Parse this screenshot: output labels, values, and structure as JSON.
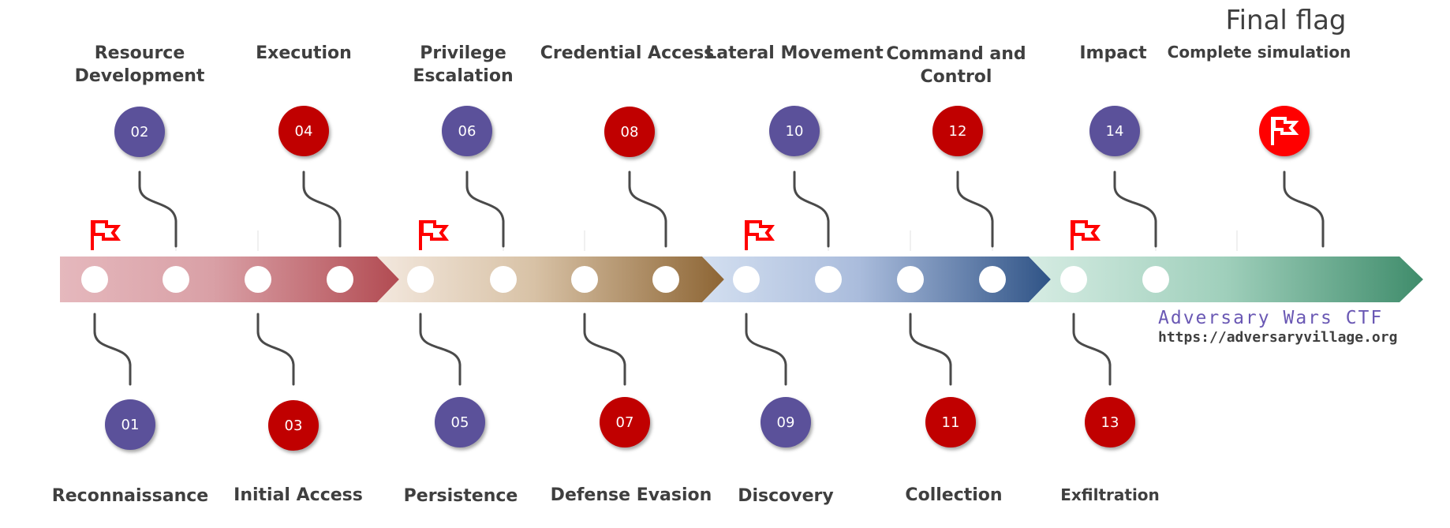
{
  "colors": {
    "purple": "#5b519a",
    "red": "#c00000",
    "flag_red": "#ff0000",
    "label": "#3f3f3f",
    "brand": "#6a58b4"
  },
  "stages": [
    {
      "num": "01",
      "label": "Reconnaissance",
      "color": "purple"
    },
    {
      "num": "02",
      "label": "Resource\nDevelopment",
      "color": "purple"
    },
    {
      "num": "03",
      "label": "Initial Access",
      "color": "red"
    },
    {
      "num": "04",
      "label": "Execution",
      "color": "red"
    },
    {
      "num": "05",
      "label": "Persistence",
      "color": "purple"
    },
    {
      "num": "06",
      "label": "Privilege\nEscalation",
      "color": "purple"
    },
    {
      "num": "07",
      "label": "Defense Evasion",
      "color": "red"
    },
    {
      "num": "08",
      "label": "Credential Access",
      "color": "red"
    },
    {
      "num": "09",
      "label": "Discovery",
      "color": "purple"
    },
    {
      "num": "10",
      "label": "Lateral Movement",
      "color": "purple"
    },
    {
      "num": "11",
      "label": "Collection",
      "color": "red"
    },
    {
      "num": "12",
      "label": "Command and\nControl",
      "color": "red"
    },
    {
      "num": "13",
      "label": "Exfiltration",
      "color": "red"
    },
    {
      "num": "14",
      "label": "Impact",
      "color": "purple"
    }
  ],
  "final": {
    "title": "Final flag",
    "subtitle": "Complete simulation",
    "icon": "flag-icon"
  },
  "section_flag_icon": "flag-icon",
  "brand": {
    "title": "Adversary Wars CTF",
    "url": "https://adversaryvillage.org"
  }
}
